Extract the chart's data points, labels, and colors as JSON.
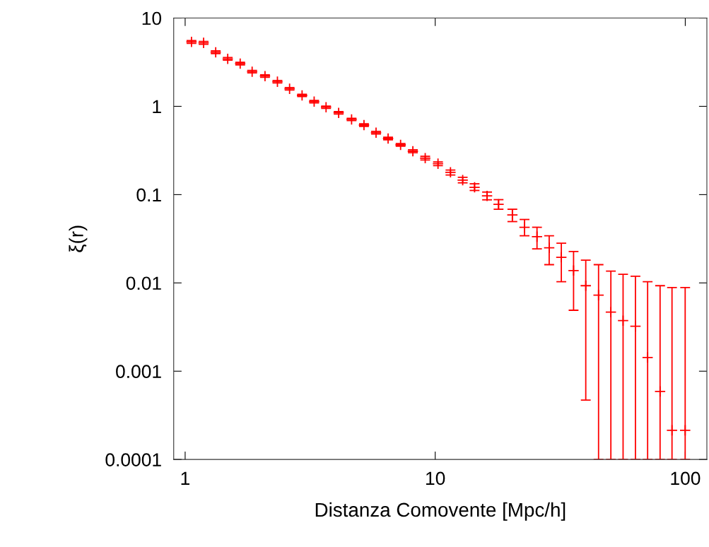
{
  "chart_data": {
    "type": "scatter",
    "xlabel": "Distanza Comovente [Mpc/h]",
    "ylabel": "ξ(r)",
    "log": "xy",
    "grid": false,
    "marker": "cross",
    "xlim": [
      0.9,
      122
    ],
    "xticks": [
      1,
      10,
      100
    ],
    "ylim": [
      0.0001,
      10
    ],
    "yticks": [
      0.0001,
      0.001,
      0.01,
      0.1,
      1,
      10
    ],
    "series": [
      {
        "color": "#ff0000",
        "x": [
          1.06,
          1.185,
          1.325,
          1.48,
          1.66,
          1.853,
          2.086,
          2.339,
          2.616,
          2.935,
          3.28,
          3.66,
          4.11,
          4.63,
          5.19,
          5.8,
          6.48,
          7.27,
          8.14,
          9.12,
          10.26,
          11.51,
          12.88,
          14.37,
          16.12,
          17.92,
          20.35,
          22.76,
          25.53,
          28.56,
          31.94,
          35.75,
          40.0,
          45.0,
          50.4,
          56.4,
          63.2,
          70.7,
          79.3,
          88.5,
          99.9
        ],
        "values": [
          5.37,
          5.24,
          4.1,
          3.45,
          3.05,
          2.47,
          2.2,
          1.9,
          1.58,
          1.33,
          1.13,
          0.978,
          0.844,
          0.711,
          0.613,
          0.503,
          0.432,
          0.366,
          0.31,
          0.259,
          0.224,
          0.179,
          0.146,
          0.121,
          0.0967,
          0.0777,
          0.0589,
          0.0427,
          0.0334,
          0.025,
          0.0195,
          0.0138,
          0.0093,
          0.00727,
          0.00467,
          0.00374,
          0.00323,
          0.00143,
          0.00059,
          0.000214,
          0.000214
        ],
        "errors": [
          0.2,
          0.2,
          0.15,
          0.12,
          0.1,
          0.08,
          0.07,
          0.06,
          0.05,
          0.04,
          0.035,
          0.03,
          0.026,
          0.022,
          0.02,
          0.017,
          0.015,
          0.013,
          0.012,
          [
            0.247,
            0.272
          ],
          [
            0.213,
            0.235
          ],
          [
            0.167,
            0.19
          ],
          [
            0.136,
            0.157
          ],
          [
            0.1115,
            0.1326
          ],
          [
            0.0873,
            0.1069
          ],
          [
            0.0683,
            0.0877
          ],
          [
            0.0495,
            0.0683
          ],
          [
            0.0342,
            0.0523
          ],
          [
            0.0243,
            0.0427
          ],
          [
            0.0161,
            0.0342
          ],
          [
            0.0103,
            0.0282
          ],
          [
            0.0049,
            0.0227
          ],
          [
            0.00047,
            0.0181
          ],
          [
            0.0001,
            0.0161
          ],
          [
            0.0001,
            0.0136
          ],
          [
            0.0001,
            0.0125
          ],
          [
            0.0001,
            0.0119
          ],
          [
            0.0001,
            0.0103
          ],
          [
            0.0001,
            0.0093
          ],
          [
            0.0001,
            0.00885
          ],
          [
            0.0001,
            0.00885
          ]
        ]
      }
    ]
  }
}
